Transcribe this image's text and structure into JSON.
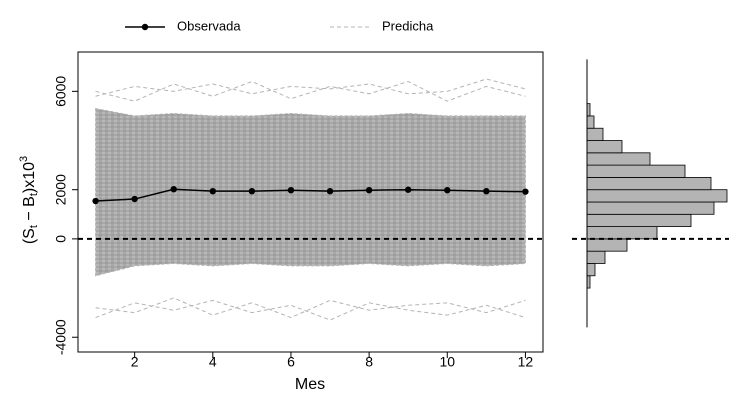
{
  "chart_data": [
    {
      "type": "line",
      "xlabel": "Mes",
      "ylabel": [
        "(S",
        "t",
        " − B",
        "t",
        ")x10",
        "3"
      ],
      "x": [
        1,
        2,
        3,
        4,
        5,
        6,
        7,
        8,
        9,
        10,
        11,
        12
      ],
      "series": [
        {
          "name": "Observada",
          "color": "#000000",
          "values": [
            1540,
            1620,
            2020,
            1940,
            1940,
            1980,
            1940,
            1980,
            2000,
            1980,
            1940,
            1920
          ]
        },
        {
          "name": "Predicha",
          "color": "#b4b4b4",
          "lower": [
            -1500,
            -1100,
            -1000,
            -1100,
            -1000,
            -1100,
            -1100,
            -1000,
            -1100,
            -1000,
            -1100,
            -1000
          ],
          "upper": [
            5300,
            5000,
            5100,
            5000,
            5000,
            5100,
            5000,
            5000,
            5100,
            5000,
            5000,
            5000
          ],
          "extremes": [
            [
              5800,
              6200,
              6000,
              6300,
              5900,
              6200,
              6100,
              6300,
              5900,
              6000,
              6500,
              6100
            ],
            [
              6000,
              5600,
              6300,
              5800,
              6400,
              5700,
              6200,
              5900,
              6400,
              5600,
              6200,
              5800
            ],
            [
              -3200,
              -2600,
              -2900,
              -2500,
              -3000,
              -2700,
              -3300,
              -2600,
              -2900,
              -3100,
              -2700,
              -3200
            ],
            [
              -2800,
              -3000,
              -2400,
              -3100,
              -2600,
              -3200,
              -2500,
              -2900,
              -2700,
              -2600,
              -3000,
              -2500
            ]
          ]
        }
      ],
      "xlim": [
        0.55,
        12.45
      ],
      "xticks": [
        2,
        4,
        6,
        8,
        10,
        12
      ],
      "ylim": [
        -4600,
        7600
      ],
      "yticks": [
        -4000,
        0,
        2000,
        6000
      ],
      "hline": 0,
      "legend": "top"
    },
    {
      "type": "histogram",
      "orientation": "horizontal",
      "color": "#b4b4b4",
      "bins": [
        -2000,
        -1500,
        -1000,
        -500,
        0,
        500,
        1000,
        1500,
        2000,
        2500,
        3000,
        3500,
        4000,
        4500,
        5000,
        5500
      ],
      "counts": [
        3,
        8,
        18,
        40,
        70,
        104,
        127,
        140,
        124,
        98,
        63,
        35,
        16,
        7,
        3
      ],
      "xlim": [
        0,
        142
      ],
      "ylim": [
        -3600,
        7300
      ],
      "hline": 0
    }
  ]
}
